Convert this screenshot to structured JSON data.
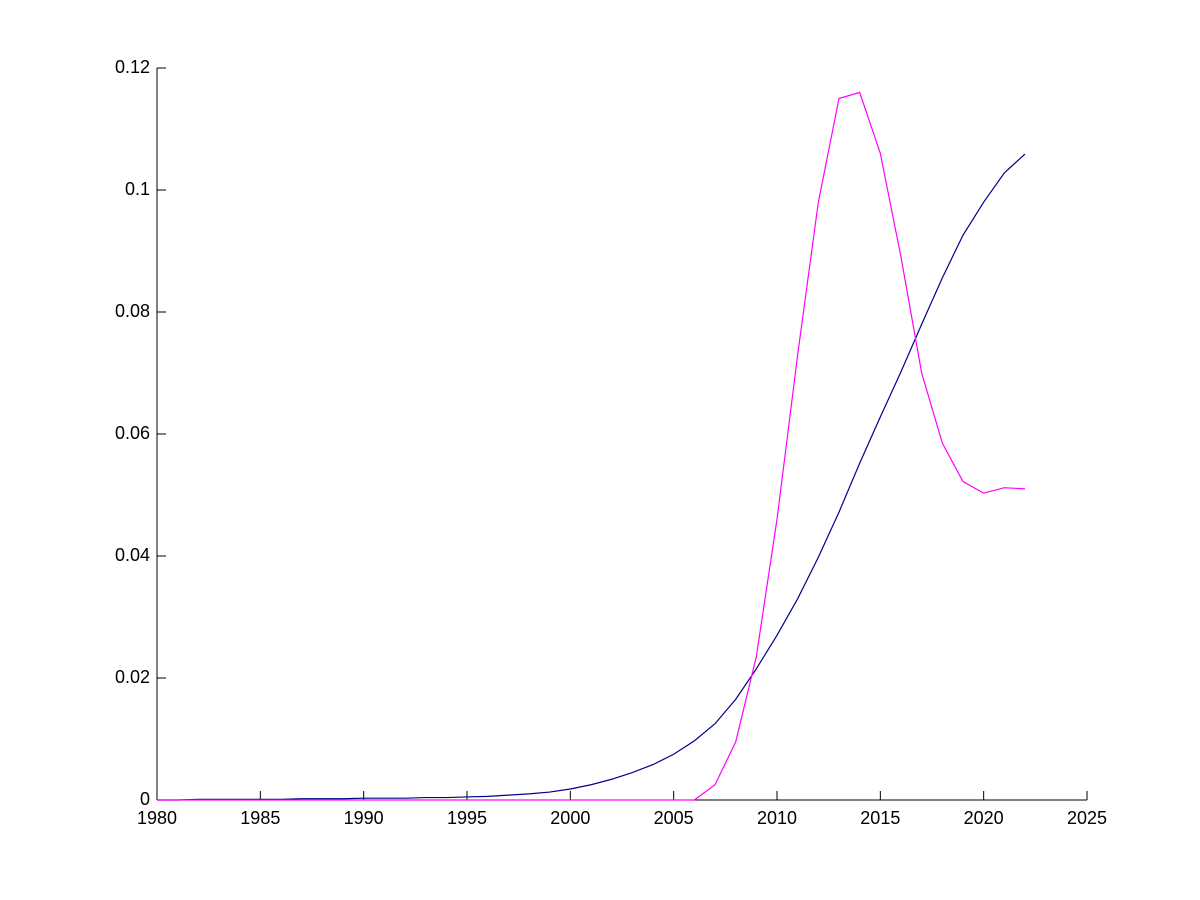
{
  "chart_data": {
    "type": "line",
    "x": [
      1980,
      1981,
      1982,
      1983,
      1984,
      1985,
      1986,
      1987,
      1988,
      1989,
      1990,
      1991,
      1992,
      1993,
      1994,
      1995,
      1996,
      1997,
      1998,
      1999,
      2000,
      2001,
      2002,
      2003,
      2004,
      2005,
      2006,
      2007,
      2008,
      2009,
      2010,
      2011,
      2012,
      2013,
      2014,
      2015,
      2016,
      2017,
      2018,
      2019,
      2020,
      2021,
      2022
    ],
    "series": [
      {
        "color": "#00008b",
        "values": [
          0,
          0,
          0.0001,
          0.0001,
          0.0001,
          0.0001,
          0.0001,
          0.0002,
          0.0002,
          0.0002,
          0.0003,
          0.0003,
          0.0003,
          0.0004,
          0.0004,
          0.0005,
          0.0006,
          0.0008,
          0.001,
          0.0013,
          0.0018,
          0.0025,
          0.0034,
          0.0045,
          0.0058,
          0.0075,
          0.0097,
          0.0125,
          0.0165,
          0.0215,
          0.027,
          0.033,
          0.0398,
          0.0472,
          0.0552,
          0.0628,
          0.0702,
          0.078,
          0.0856,
          0.0926,
          0.098,
          0.1028,
          0.1059
        ]
      },
      {
        "color": "#ff00ff",
        "values": [
          0,
          0,
          0,
          0,
          0,
          0,
          0,
          0,
          0,
          0,
          0,
          0,
          0,
          0,
          0,
          0,
          0,
          0,
          0,
          0,
          0,
          0,
          0,
          0,
          0,
          0,
          0,
          0.0025,
          0.0095,
          0.0235,
          0.046,
          0.073,
          0.098,
          0.115,
          0.116,
          0.106,
          0.089,
          0.07,
          0.0585,
          0.0522,
          0.0503,
          0.0512,
          0.051
        ]
      }
    ],
    "xlim": [
      1980,
      2025
    ],
    "xticks": [
      1980,
      1985,
      1990,
      1995,
      2000,
      2005,
      2010,
      2015,
      2020,
      2025
    ],
    "ylim": [
      0,
      0.12
    ],
    "yticks": [
      0,
      0.02,
      0.04,
      0.06,
      0.08,
      0.1,
      0.12
    ]
  }
}
